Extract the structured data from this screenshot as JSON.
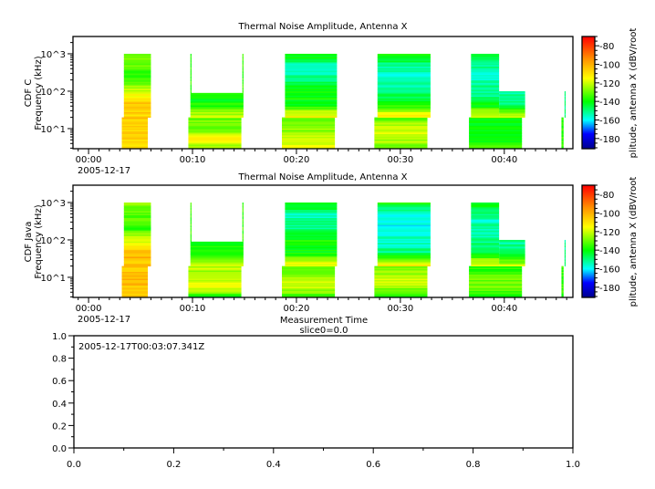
{
  "chart_data": [
    {
      "type": "heatmap",
      "title": "Thermal Noise Amplitude, Antenna X",
      "ylabel": "CDF C\nFrequency (kHz)",
      "xlabel": "",
      "x_ticks": [
        "00:00",
        "00:10",
        "00:20",
        "00:30",
        "00:40"
      ],
      "x_date_label": "2005-12-17",
      "x_range_minutes": [
        -1.5,
        46.6
      ],
      "y_scale": "log",
      "y_range": [
        2.9,
        2900
      ],
      "y_ticks": [
        "10^1",
        "10^2",
        "10^3"
      ],
      "colorbar": {
        "label": "plitude, antenna X (dBV/root",
        "range": [
          -191,
          -70
        ],
        "ticks": [
          -80,
          -100,
          -120,
          -140,
          -160,
          -180
        ],
        "colormap": "rainbow"
      },
      "blocks": [
        {
          "t": [
            3.2,
            5.7
          ],
          "f": [
            2.9,
            20
          ],
          "levels_db": [
            -108,
            -106,
            -105
          ]
        },
        {
          "t": [
            3.4,
            6.0
          ],
          "f": [
            20,
            1000
          ],
          "levels_db": [
            -108,
            -104,
            -118,
            -135,
            -132,
            -128
          ]
        },
        {
          "t": [
            9.6,
            14.7
          ],
          "f": [
            2.9,
            20
          ],
          "levels_db": [
            -125,
            -115,
            -130,
            -128
          ]
        },
        {
          "t": [
            9.8,
            14.9
          ],
          "f": [
            20,
            90
          ],
          "levels_db": [
            -118,
            -138,
            -140
          ]
        },
        {
          "t": [
            9.8,
            9.9
          ],
          "f": [
            90,
            1000
          ],
          "levels_db": [
            -135
          ]
        },
        {
          "t": [
            14.8,
            14.9
          ],
          "f": [
            90,
            1000
          ],
          "levels_db": [
            -135
          ]
        },
        {
          "t": [
            18.6,
            23.7
          ],
          "f": [
            2.9,
            20
          ],
          "levels_db": [
            -118,
            -125,
            -132
          ]
        },
        {
          "t": [
            18.9,
            23.9
          ],
          "f": [
            20,
            1000
          ],
          "levels_db": [
            -112,
            -140,
            -138,
            -150,
            -155,
            -138
          ]
        },
        {
          "t": [
            27.5,
            32.6
          ],
          "f": [
            2.9,
            20
          ],
          "levels_db": [
            -128,
            -118,
            -130
          ]
        },
        {
          "t": [
            27.8,
            32.9
          ],
          "f": [
            20,
            1000
          ],
          "levels_db": [
            -110,
            -140,
            -150,
            -155,
            -155,
            -135
          ]
        },
        {
          "t": [
            36.6,
            41.7
          ],
          "f": [
            2.9,
            20
          ],
          "levels_db": [
            -135,
            -140,
            -138
          ]
        },
        {
          "t": [
            36.8,
            39.5
          ],
          "f": [
            20,
            1000
          ],
          "levels_db": [
            -115,
            -148,
            -152,
            -155,
            -140
          ]
        },
        {
          "t": [
            39.5,
            42.0
          ],
          "f": [
            20,
            100
          ],
          "levels_db": [
            -118,
            -150,
            -152
          ]
        },
        {
          "t": [
            45.5,
            45.7
          ],
          "f": [
            2.9,
            20
          ],
          "levels_db": [
            -135
          ]
        },
        {
          "t": [
            45.8,
            45.9
          ],
          "f": [
            20,
            100
          ],
          "levels_db": [
            -150
          ]
        }
      ]
    },
    {
      "type": "heatmap",
      "title": "Thermal Noise Amplitude, Antenna X",
      "ylabel": "CDF Java\nFrequency (kHz)",
      "xlabel": "Measurement Time",
      "x_ticks": [
        "00:00",
        "00:10",
        "00:20",
        "00:30",
        "00:40"
      ],
      "x_date_label": "2005-12-17",
      "x_range_minutes": [
        -1.5,
        46.6
      ],
      "y_scale": "log",
      "y_range": [
        2.9,
        2900
      ],
      "y_ticks": [
        "10^1",
        "10^2",
        "10^3"
      ],
      "colorbar": {
        "label": "plitude, antenna X (dBV/root",
        "range": [
          -191,
          -70
        ],
        "ticks": [
          -80,
          -100,
          -120,
          -140,
          -160,
          -180
        ],
        "colormap": "rainbow"
      },
      "blocks": [
        {
          "t": [
            3.2,
            5.7
          ],
          "f": [
            2.9,
            20
          ],
          "levels_db": [
            -104,
            -102,
            -104
          ]
        },
        {
          "t": [
            3.4,
            6.0
          ],
          "f": [
            20,
            1000
          ],
          "levels_db": [
            -104,
            -100,
            -118,
            -135,
            -132,
            -128
          ]
        },
        {
          "t": [
            9.6,
            14.7
          ],
          "f": [
            2.9,
            20
          ],
          "levels_db": [
            -140,
            -115,
            -125,
            -122
          ]
        },
        {
          "t": [
            9.8,
            14.9
          ],
          "f": [
            20,
            90
          ],
          "levels_db": [
            -118,
            -135,
            -138
          ]
        },
        {
          "t": [
            9.8,
            9.9
          ],
          "f": [
            90,
            1000
          ],
          "levels_db": [
            -135
          ]
        },
        {
          "t": [
            14.8,
            14.9
          ],
          "f": [
            90,
            1000
          ],
          "levels_db": [
            -135
          ]
        },
        {
          "t": [
            18.6,
            23.7
          ],
          "f": [
            2.9,
            20
          ],
          "levels_db": [
            -135,
            -118,
            -125,
            -130
          ]
        },
        {
          "t": [
            18.9,
            23.9
          ],
          "f": [
            20,
            1000
          ],
          "levels_db": [
            -112,
            -140,
            -138,
            -150,
            -155,
            -138
          ]
        },
        {
          "t": [
            27.5,
            32.6
          ],
          "f": [
            2.9,
            20
          ],
          "levels_db": [
            -140,
            -118,
            -130
          ]
        },
        {
          "t": [
            27.8,
            32.9
          ],
          "f": [
            20,
            1000
          ],
          "levels_db": [
            -110,
            -150,
            -155,
            -158,
            -158,
            -140
          ]
        },
        {
          "t": [
            36.6,
            41.7
          ],
          "f": [
            2.9,
            20
          ],
          "levels_db": [
            -138,
            -128,
            -138
          ]
        },
        {
          "t": [
            36.8,
            39.5
          ],
          "f": [
            20,
            1000
          ],
          "levels_db": [
            -115,
            -148,
            -152,
            -155,
            -140
          ]
        },
        {
          "t": [
            39.5,
            42.0
          ],
          "f": [
            20,
            100
          ],
          "levels_db": [
            -118,
            -150,
            -152
          ]
        },
        {
          "t": [
            45.5,
            45.7
          ],
          "f": [
            2.9,
            20
          ],
          "levels_db": [
            -135
          ]
        },
        {
          "t": [
            45.8,
            45.9
          ],
          "f": [
            20,
            100
          ],
          "levels_db": [
            -150
          ]
        }
      ]
    },
    {
      "type": "line",
      "title": "slice0=0.0",
      "annotation": "2005-12-17T00:03:07.341Z",
      "xlim": [
        0.0,
        1.0
      ],
      "ylim": [
        0.0,
        1.0
      ],
      "x_ticks": [
        "0.0",
        "0.2",
        "0.4",
        "0.6",
        "0.8",
        "1.0"
      ],
      "y_ticks": [
        "0.0",
        "0.2",
        "0.4",
        "0.6",
        "0.8",
        "1.0"
      ],
      "series": []
    }
  ]
}
